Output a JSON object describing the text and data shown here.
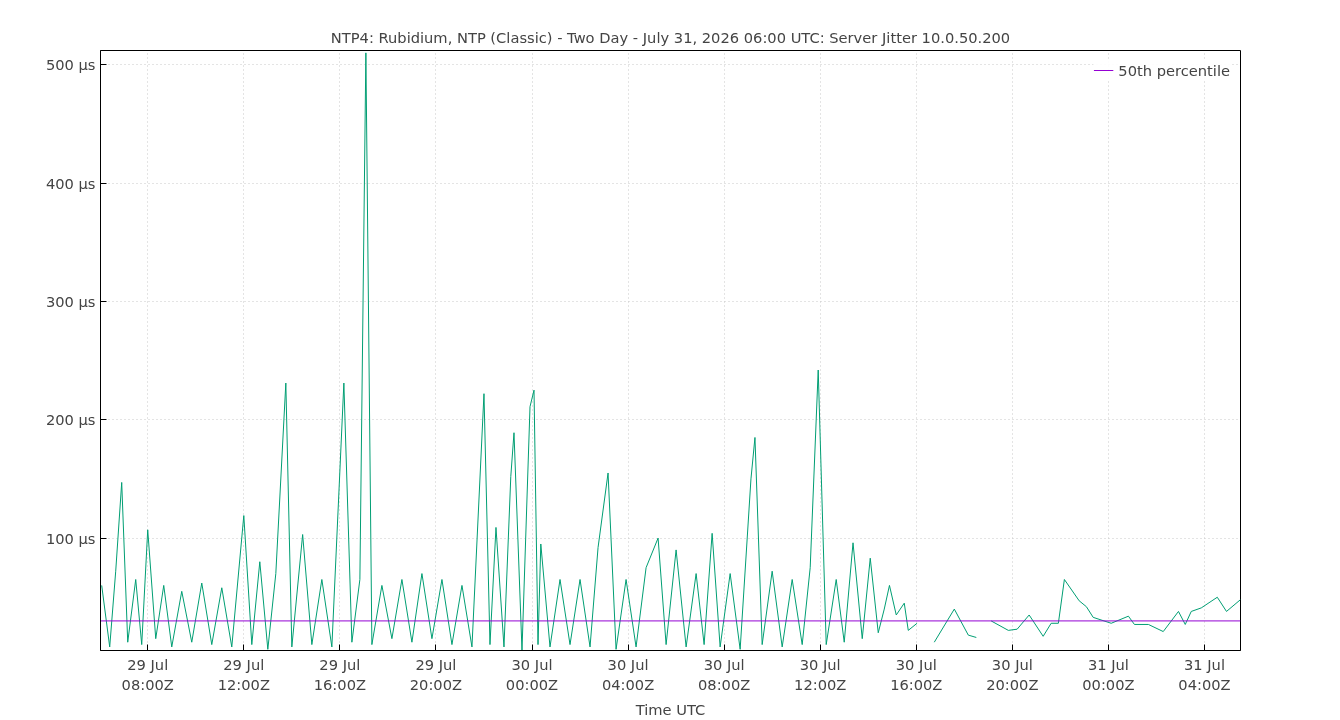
{
  "chart_data": {
    "type": "line",
    "title": "NTP4: Rubidium, NTP (Classic) - Two Day - July 31, 2026 06:00 UTC: Server Jitter 10.0.50.200",
    "xlabel": "Time UTC",
    "xlim": [
      "2026-07-29T06:02",
      "2026-07-31T05:30"
    ],
    "xticks": [
      {
        "value": "2026-07-29T08:00",
        "label": "29 Jul\n08:00Z"
      },
      {
        "value": "2026-07-29T12:00",
        "label": "29 Jul\n12:00Z"
      },
      {
        "value": "2026-07-29T16:00",
        "label": "29 Jul\n16:00Z"
      },
      {
        "value": "2026-07-29T20:00",
        "label": "29 Jul\n20:00Z"
      },
      {
        "value": "2026-07-30T00:00",
        "label": "30 Jul\n00:00Z"
      },
      {
        "value": "2026-07-30T04:00",
        "label": "30 Jul\n04:00Z"
      },
      {
        "value": "2026-07-30T08:00",
        "label": "30 Jul\n08:00Z"
      },
      {
        "value": "2026-07-30T12:00",
        "label": "30 Jul\n12:00Z"
      },
      {
        "value": "2026-07-30T16:00",
        "label": "30 Jul\n16:00Z"
      },
      {
        "value": "2026-07-30T20:00",
        "label": "30 Jul\n20:00Z"
      },
      {
        "value": "2026-07-31T00:00",
        "label": "31 Jul\n00:00Z"
      },
      {
        "value": "2026-07-31T04:00",
        "label": "31 Jul\n04:00Z"
      }
    ],
    "ylim": [
      5,
      512
    ],
    "yticks": [
      {
        "value": 100,
        "label": "100 µs"
      },
      {
        "value": 200,
        "label": "200 µs"
      },
      {
        "value": 300,
        "label": "300 µs"
      },
      {
        "value": 400,
        "label": "400 µs"
      },
      {
        "value": 500,
        "label": "500 µs"
      }
    ],
    "grid": true,
    "legend": "top right",
    "series": [
      {
        "color": "#009e73",
        "x": [
          "2026-07-29T06:05",
          "2026-07-29T06:25",
          "2026-07-29T06:40",
          "2026-07-29T06:55",
          "2026-07-29T07:10",
          "2026-07-29T07:30",
          "2026-07-29T07:45",
          "2026-07-29T08:00",
          "2026-07-29T08:20",
          "2026-07-29T08:40",
          "2026-07-29T09:00",
          "2026-07-29T09:25",
          "2026-07-29T09:50",
          "2026-07-29T10:15",
          "2026-07-29T10:40",
          "2026-07-29T11:05",
          "2026-07-29T11:30",
          "2026-07-29T12:00",
          "2026-07-29T12:20",
          "2026-07-29T12:40",
          "2026-07-29T13:00",
          "2026-07-29T13:20",
          "2026-07-29T13:45",
          "2026-07-29T14:00",
          "2026-07-29T14:27",
          "2026-07-29T14:50",
          "2026-07-29T15:15",
          "2026-07-29T15:40",
          "2026-07-29T16:10",
          "2026-07-29T16:30",
          "2026-07-29T16:50",
          "2026-07-29T17:05",
          "2026-07-29T17:20",
          "2026-07-29T17:45",
          "2026-07-29T18:10",
          "2026-07-29T18:35",
          "2026-07-29T19:00",
          "2026-07-29T19:25",
          "2026-07-29T19:50",
          "2026-07-29T20:15",
          "2026-07-29T20:40",
          "2026-07-29T21:05",
          "2026-07-29T21:30",
          "2026-07-29T22:00",
          "2026-07-29T22:15",
          "2026-07-29T22:30",
          "2026-07-29T22:50",
          "2026-07-29T23:07",
          "2026-07-29T23:15",
          "2026-07-29T23:35",
          "2026-07-29T23:55",
          "2026-07-30T00:05",
          "2026-07-30T00:15",
          "2026-07-30T00:22",
          "2026-07-30T00:45",
          "2026-07-30T01:10",
          "2026-07-30T01:35",
          "2026-07-30T02:00",
          "2026-07-30T02:25",
          "2026-07-30T02:45",
          "2026-07-30T03:10",
          "2026-07-30T03:30",
          "2026-07-30T03:55",
          "2026-07-30T04:20",
          "2026-07-30T04:45",
          "2026-07-30T05:15",
          "2026-07-30T05:35",
          "2026-07-30T06:00",
          "2026-07-30T06:25",
          "2026-07-30T06:50",
          "2026-07-30T07:10",
          "2026-07-30T07:30",
          "2026-07-30T07:50",
          "2026-07-30T08:15",
          "2026-07-30T08:40",
          "2026-07-30T09:07",
          "2026-07-30T09:17",
          "2026-07-30T09:35",
          "2026-07-30T10:00",
          "2026-07-30T10:25",
          "2026-07-30T10:50",
          "2026-07-30T11:15",
          "2026-07-30T11:35",
          "2026-07-30T11:55",
          "2026-07-30T12:15",
          "2026-07-30T12:40",
          "2026-07-30T13:00",
          "2026-07-30T13:22",
          "2026-07-30T13:45",
          "2026-07-30T14:05",
          "2026-07-30T14:25",
          "2026-07-30T14:40",
          "2026-07-30T14:53",
          "2026-07-30T15:10",
          "2026-07-30T15:30",
          "2026-07-30T15:40",
          "2026-07-30T16:02",
          "2026-07-30T16:20",
          "2026-07-30T16:45",
          "2026-07-30T17:35",
          "2026-07-30T18:10",
          "2026-07-30T18:30",
          "2026-07-30T18:50",
          "2026-07-30T19:07",
          "2026-07-30T19:50",
          "2026-07-30T20:12",
          "2026-07-30T20:42",
          "2026-07-30T21:17",
          "2026-07-30T21:37",
          "2026-07-30T21:55",
          "2026-07-30T22:10",
          "2026-07-30T22:47",
          "2026-07-30T23:05",
          "2026-07-30T23:22",
          "2026-07-31T00:07",
          "2026-07-31T00:50",
          "2026-07-31T01:05",
          "2026-07-31T01:40",
          "2026-07-31T02:17",
          "2026-07-31T02:55",
          "2026-07-31T03:12",
          "2026-07-31T03:27",
          "2026-07-31T03:52",
          "2026-07-31T04:32",
          "2026-07-31T04:55",
          "2026-07-31T05:30"
        ],
        "values": [
          60,
          8,
          72,
          147,
          12,
          65,
          10,
          107,
          15,
          60,
          8,
          55,
          12,
          62,
          10,
          58,
          8,
          119,
          10,
          80,
          6,
          70,
          231,
          8,
          103,
          10,
          65,
          8,
          231,
          12,
          65,
          510,
          10,
          60,
          15,
          65,
          12,
          70,
          15,
          65,
          10,
          60,
          8,
          222,
          10,
          109,
          8,
          152,
          189,
          5,
          211,
          225,
          10,
          95,
          8,
          65,
          10,
          65,
          8,
          92,
          155,
          6,
          65,
          8,
          75,
          100,
          10,
          90,
          8,
          70,
          10,
          104,
          8,
          70,
          6,
          150,
          185,
          10,
          72,
          8,
          65,
          10,
          75,
          242,
          10,
          65,
          12,
          96,
          15,
          83,
          20,
          40,
          60,
          35,
          45,
          22,
          28,
          null,
          12,
          40,
          18,
          16,
          null,
          30,
          22,
          23,
          35,
          17,
          28,
          28,
          65,
          47,
          42,
          33,
          28,
          34,
          27,
          27,
          21,
          38,
          27,
          38,
          41,
          50,
          38,
          48
        ]
      },
      {
        "name": "50th percentile",
        "color": "#9400d3",
        "x": [
          "2026-07-29T06:02",
          "2026-07-31T05:30"
        ],
        "values": [
          30,
          30
        ]
      }
    ]
  }
}
